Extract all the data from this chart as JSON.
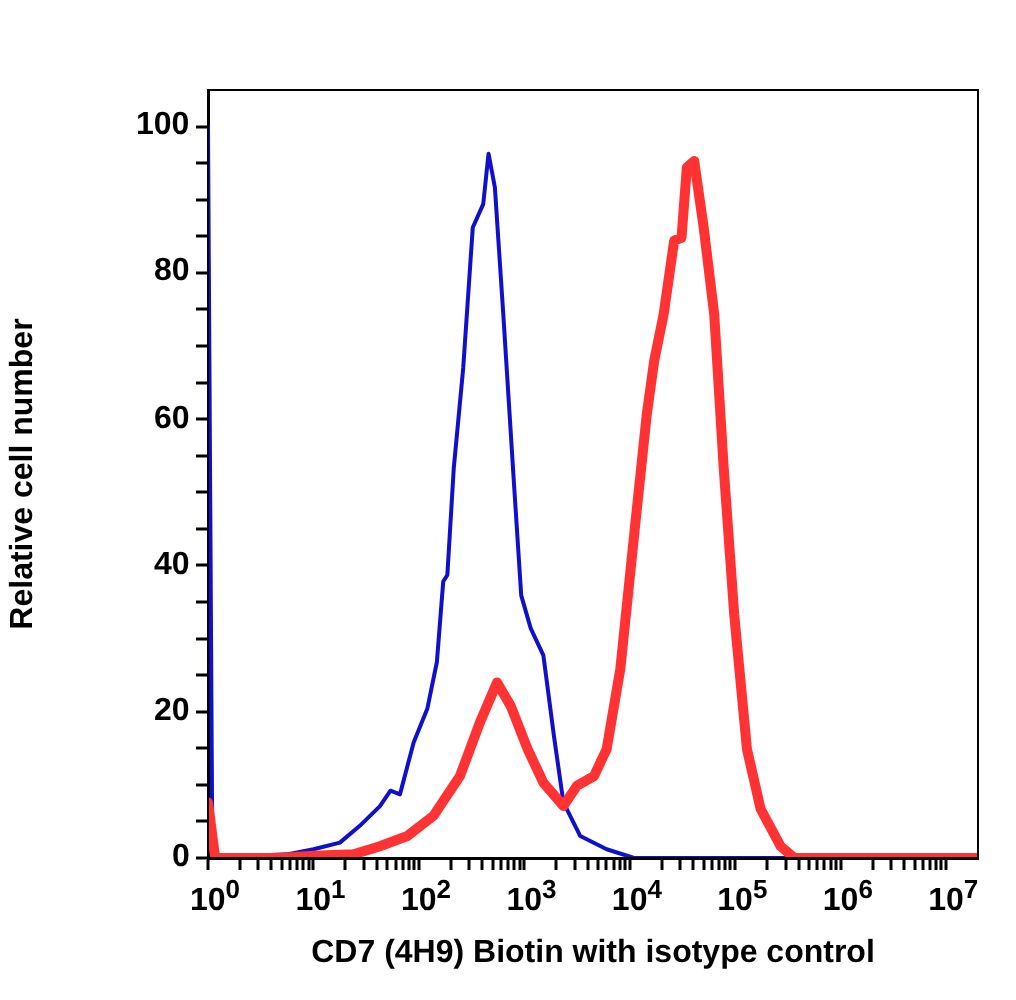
{
  "chart_data": {
    "type": "line",
    "xlabel": "CD7 (4H9) Biotin with isotype control",
    "ylabel": "Relative cell number",
    "log": "x",
    "grid": false,
    "legend": false,
    "xlim": [
      1,
      20000000
    ],
    "xticks": [
      {
        "value": 1,
        "label": "10$^{0}$"
      },
      {
        "value": 2,
        "label": null
      },
      {
        "value": 3,
        "label": null
      },
      {
        "value": 4,
        "label": null
      },
      {
        "value": 5,
        "label": null
      },
      {
        "value": 6,
        "label": null
      },
      {
        "value": 7,
        "label": null
      },
      {
        "value": 8,
        "label": null
      },
      {
        "value": 9,
        "label": null
      },
      {
        "value": 10,
        "label": "10$^{1}$"
      },
      {
        "value": 20,
        "label": null
      },
      {
        "value": 30,
        "label": null
      },
      {
        "value": 40,
        "label": null
      },
      {
        "value": 50,
        "label": null
      },
      {
        "value": 60,
        "label": null
      },
      {
        "value": 70,
        "label": null
      },
      {
        "value": 80,
        "label": null
      },
      {
        "value": 90,
        "label": null
      },
      {
        "value": 100,
        "label": "10$^{2}$"
      },
      {
        "value": 200,
        "label": null
      },
      {
        "value": 300,
        "label": null
      },
      {
        "value": 400,
        "label": null
      },
      {
        "value": 500,
        "label": null
      },
      {
        "value": 600,
        "label": null
      },
      {
        "value": 700,
        "label": null
      },
      {
        "value": 800,
        "label": null
      },
      {
        "value": 900,
        "label": null
      },
      {
        "value": 1000,
        "label": "10$^{3}$"
      },
      {
        "value": 2000,
        "label": null
      },
      {
        "value": 3000,
        "label": null
      },
      {
        "value": 4000,
        "label": null
      },
      {
        "value": 5000,
        "label": null
      },
      {
        "value": 6000,
        "label": null
      },
      {
        "value": 7000,
        "label": null
      },
      {
        "value": 8000,
        "label": null
      },
      {
        "value": 9000,
        "label": null
      },
      {
        "value": 10000,
        "label": "10$^{4}$"
      },
      {
        "value": 20000,
        "label": null
      },
      {
        "value": 30000,
        "label": null
      },
      {
        "value": 40000,
        "label": null
      },
      {
        "value": 50000,
        "label": null
      },
      {
        "value": 60000,
        "label": null
      },
      {
        "value": 70000,
        "label": null
      },
      {
        "value": 80000,
        "label": null
      },
      {
        "value": 90000,
        "label": null
      },
      {
        "value": 100000,
        "label": "10$^{5}$"
      },
      {
        "value": 200000,
        "label": null
      },
      {
        "value": 300000,
        "label": null
      },
      {
        "value": 400000,
        "label": null
      },
      {
        "value": 500000,
        "label": null
      },
      {
        "value": 600000,
        "label": null
      },
      {
        "value": 700000,
        "label": null
      },
      {
        "value": 800000,
        "label": null
      },
      {
        "value": 900000,
        "label": null
      },
      {
        "value": 1000000,
        "label": "10$^{6}$"
      },
      {
        "value": 2000000,
        "label": null
      },
      {
        "value": 3000000,
        "label": null
      },
      {
        "value": 4000000,
        "label": null
      },
      {
        "value": 5000000,
        "label": null
      },
      {
        "value": 6000000,
        "label": null
      },
      {
        "value": 7000000,
        "label": null
      },
      {
        "value": 8000000,
        "label": null
      },
      {
        "value": 9000000,
        "label": null
      },
      {
        "value": 10000000,
        "label": "10$^{7}$"
      }
    ],
    "ylim": [
      0,
      105
    ],
    "yticks": [
      0,
      {
        "value": 5,
        "label": null
      },
      {
        "value": 10,
        "label": null
      },
      {
        "value": 15,
        "label": null
      },
      20,
      {
        "value": 25,
        "label": null
      },
      {
        "value": 30,
        "label": null
      },
      {
        "value": 35,
        "label": null
      },
      40,
      {
        "value": 45,
        "label": null
      },
      {
        "value": 50,
        "label": null
      },
      {
        "value": 55,
        "label": null
      },
      60,
      {
        "value": 65,
        "label": null
      },
      {
        "value": 70,
        "label": null
      },
      {
        "value": 75,
        "label": null
      },
      80,
      {
        "value": 85,
        "label": null
      },
      {
        "value": 90,
        "label": null
      },
      {
        "value": 95,
        "label": null
      },
      100
    ],
    "series": [
      {
        "color": "#ff3333",
        "x": [
          1,
          1.17,
          4.8,
          10,
          24,
          42.7,
          77.6,
          138,
          245,
          380,
          550,
          741,
          1072,
          1514,
          2344,
          3162,
          4571,
          6026,
          8128,
          10965,
          14454,
          16982,
          20893,
          26303,
          30903,
          34674,
          40738,
          50119,
          63096,
          77625,
          97724,
          128825,
          173780,
          269153,
          363078,
          20000000
        ],
        "values": [
          7.6,
          0,
          0,
          0.3,
          0.5,
          1.6,
          3.0,
          5.8,
          11.2,
          18.6,
          24,
          20.8,
          14.9,
          10.3,
          7.1,
          9.9,
          11.2,
          14.9,
          25.9,
          44.1,
          60.6,
          67.9,
          74.3,
          84.4,
          84.8,
          94.4,
          95.3,
          86.2,
          74.3,
          53.3,
          33.2,
          14.9,
          6.7,
          1.6,
          0,
          0
        ]
      },
      {
        "color": "#1010cc",
        "x": [
          1,
          1.1,
          2.69,
          5.62,
          10,
          17.8,
          27.5,
          42.7,
          53.7,
          66.1,
          89.1,
          120,
          148,
          170,
          186,
          214,
          263,
          324,
          407,
          457,
          525,
          631,
          794,
          933,
          1148,
          1514,
          1905,
          2344,
          3388,
          6026,
          10965,
          20000000
        ],
        "values": [
          100,
          0,
          0.3,
          0.5,
          1.2,
          2.1,
          4.4,
          7.1,
          9.2,
          8.7,
          15.8,
          20.4,
          26.8,
          37.8,
          38.7,
          53.3,
          67,
          86.2,
          89.4,
          96.3,
          91.7,
          74.3,
          51.5,
          35.9,
          31.4,
          27.7,
          16.7,
          7.6,
          3.0,
          1.2,
          0,
          0
        ]
      }
    ]
  }
}
